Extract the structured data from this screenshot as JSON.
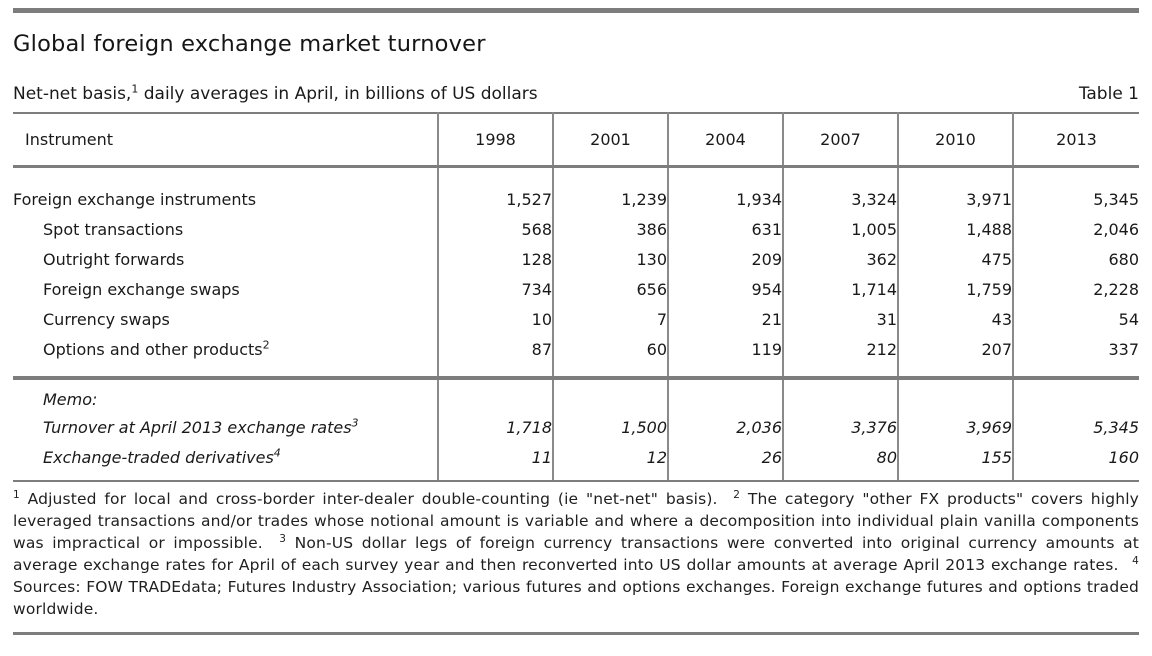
{
  "title": "Global foreign exchange market turnover",
  "subtitle": {
    "prefix": "Net-net basis,",
    "sup": "1",
    "suffix": " daily averages in April, in billions of US dollars"
  },
  "table_label": "Table 1",
  "colors": {
    "rule_gray": "#7d7d7d",
    "text": "#1a1a1a",
    "background": "#ffffff"
  },
  "table": {
    "columns": [
      "Instrument",
      "1998",
      "2001",
      "2004",
      "2007",
      "2010",
      "2013"
    ],
    "rows": [
      {
        "label": "Foreign exchange instruments",
        "sup": "",
        "indent": false,
        "values": [
          "1,527",
          "1,239",
          "1,934",
          "3,324",
          "3,971",
          "5,345"
        ]
      },
      {
        "label": "Spot transactions",
        "sup": "",
        "indent": true,
        "values": [
          "568",
          "386",
          "631",
          "1,005",
          "1,488",
          "2,046"
        ]
      },
      {
        "label": "Outright forwards",
        "sup": "",
        "indent": true,
        "values": [
          "128",
          "130",
          "209",
          "362",
          "475",
          "680"
        ]
      },
      {
        "label": "Foreign exchange swaps",
        "sup": "",
        "indent": true,
        "values": [
          "734",
          "656",
          "954",
          "1,714",
          "1,759",
          "2,228"
        ]
      },
      {
        "label": "Currency swaps",
        "sup": "",
        "indent": true,
        "values": [
          "10",
          "7",
          "21",
          "31",
          "43",
          "54"
        ]
      },
      {
        "label": "Options and other products",
        "sup": "2",
        "indent": true,
        "values": [
          "87",
          "60",
          "119",
          "212",
          "207",
          "337"
        ]
      }
    ],
    "memo_rows": [
      {
        "label": "Memo:",
        "sup": "",
        "indent": true,
        "values": [
          "",
          "",
          "",
          "",
          "",
          ""
        ]
      },
      {
        "label": "Turnover at April 2013 exchange rates",
        "sup": "3",
        "indent": true,
        "values": [
          "1,718",
          "1,500",
          "2,036",
          "3,376",
          "3,969",
          "5,345"
        ]
      },
      {
        "label": "Exchange-traded derivatives",
        "sup": "4",
        "indent": true,
        "values": [
          "11",
          "12",
          "26",
          "80",
          "155",
          "160"
        ]
      }
    ]
  },
  "footnotes": [
    {
      "sup": "1",
      "text": "Adjusted for local and cross-border inter-dealer double-counting (ie \"net-net\" basis)."
    },
    {
      "sup": "2",
      "text": "The category \"other FX products\" covers highly leveraged transactions and/or trades whose notional amount is variable and where a decomposition into individual plain vanilla components was impractical or impossible."
    },
    {
      "sup": "3",
      "text": "Non-US dollar legs of foreign currency transactions were converted into original currency amounts at average exchange rates for April of each survey year and then reconverted into US dollar amounts at average April 2013 exchange rates."
    },
    {
      "sup": "4",
      "text": "Sources: FOW TRADEdata; Futures Industry Association; various futures and options exchanges. Foreign exchange futures and options traded worldwide."
    }
  ]
}
